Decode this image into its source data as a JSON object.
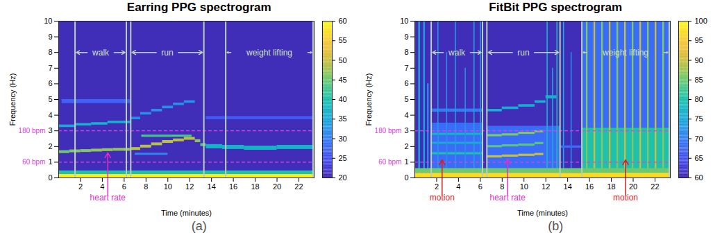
{
  "chart_data": [
    {
      "type": "heatmap",
      "title": "Earring PPG spectrogram",
      "panel_label": "(a)",
      "x_label": "Time (minutes)",
      "y_label": "Frequency (Hz)",
      "xlim": [
        0,
        23.4
      ],
      "xticks": [
        2,
        4,
        6,
        8,
        10,
        12,
        14,
        16,
        18,
        20,
        22
      ],
      "ylim": [
        0,
        10
      ],
      "yticks": [
        0,
        1,
        2,
        3,
        4,
        5,
        6,
        7,
        8,
        9,
        10
      ],
      "colorbar": {
        "range": [
          20,
          60
        ],
        "ticks": [
          20,
          25,
          30,
          35,
          40,
          45,
          50,
          55,
          60
        ]
      },
      "reference_lines": [
        {
          "value": 3,
          "label": "180 bpm",
          "color": "#e040e0"
        },
        {
          "value": 1,
          "label": "60 bpm",
          "color": "#e040e0"
        }
      ],
      "segments": [
        {
          "label": "walk",
          "start": 1.5,
          "end": 6.2
        },
        {
          "label": "run",
          "start": 6.6,
          "end": 13.3
        },
        {
          "label": "weight lifting",
          "start": 15.3,
          "end": 23.3
        }
      ],
      "annotations": [
        {
          "text": "heart rate",
          "target": [
            4.5,
            1.6
          ],
          "color": "#e62ec7"
        }
      ],
      "cells": [
        {
          "t0": 0,
          "t1": 23.4,
          "f0": 0,
          "f1": 10,
          "value": 21
        },
        {
          "t0": 0,
          "t1": 23.4,
          "f0": 0.22,
          "f1": 0.45,
          "value": 40
        },
        {
          "t0": 0,
          "t1": 23.4,
          "f0": 0,
          "f1": 0.22,
          "value": 59
        },
        {
          "t0": 0,
          "t1": 1,
          "f0": 1.56,
          "f1": 1.74,
          "value": 45
        },
        {
          "t0": 1,
          "t1": 2,
          "f0": 1.61,
          "f1": 1.79,
          "value": 46
        },
        {
          "t0": 2,
          "t1": 3,
          "f0": 1.63,
          "f1": 1.81,
          "value": 46
        },
        {
          "t0": 3,
          "t1": 4,
          "f0": 1.66,
          "f1": 1.84,
          "value": 47
        },
        {
          "t0": 4,
          "t1": 5,
          "f0": 1.69,
          "f1": 1.87,
          "value": 47
        },
        {
          "t0": 5,
          "t1": 6.6,
          "f0": 1.71,
          "f1": 1.89,
          "value": 47
        },
        {
          "t0": 0,
          "t1": 1.5,
          "f0": 3.22,
          "f1": 3.38,
          "value": 35
        },
        {
          "t0": 1.5,
          "t1": 3,
          "f0": 3.32,
          "f1": 3.48,
          "value": 36
        },
        {
          "t0": 3,
          "t1": 4.5,
          "f0": 3.37,
          "f1": 3.53,
          "value": 36
        },
        {
          "t0": 4.5,
          "t1": 6.6,
          "f0": 3.47,
          "f1": 3.63,
          "value": 36
        },
        {
          "t0": 0.3,
          "t1": 6.6,
          "f0": 4.75,
          "f1": 5.0,
          "value": 27
        },
        {
          "t0": 7,
          "t1": 10,
          "f0": 1.45,
          "f1": 1.58,
          "value": 31
        },
        {
          "t0": 7.6,
          "t1": 12.2,
          "f0": 2.6,
          "f1": 2.74,
          "value": 43
        },
        {
          "t0": 6.6,
          "t1": 7.5,
          "f0": 1.76,
          "f1": 1.94,
          "value": 49
        },
        {
          "t0": 7.5,
          "t1": 8.5,
          "f0": 1.91,
          "f1": 2.09,
          "value": 49
        },
        {
          "t0": 8.5,
          "t1": 9.5,
          "f0": 2.06,
          "f1": 2.24,
          "value": 49
        },
        {
          "t0": 9.5,
          "t1": 10.5,
          "f0": 2.21,
          "f1": 2.39,
          "value": 49
        },
        {
          "t0": 10.5,
          "t1": 11.5,
          "f0": 2.31,
          "f1": 2.49,
          "value": 49
        },
        {
          "t0": 11.5,
          "t1": 12.5,
          "f0": 2.41,
          "f1": 2.59,
          "value": 49
        },
        {
          "t0": 12.5,
          "t1": 13,
          "f0": 2.26,
          "f1": 2.44,
          "value": 47
        },
        {
          "t0": 13,
          "t1": 13.5,
          "f0": 2.01,
          "f1": 2.19,
          "value": 44
        },
        {
          "t0": 6.6,
          "t1": 7.5,
          "f0": 3.72,
          "f1": 3.88,
          "value": 32
        },
        {
          "t0": 7.5,
          "t1": 8.5,
          "f0": 4.02,
          "f1": 4.18,
          "value": 32
        },
        {
          "t0": 8.5,
          "t1": 9.5,
          "f0": 4.22,
          "f1": 4.38,
          "value": 32
        },
        {
          "t0": 9.5,
          "t1": 10.5,
          "f0": 4.42,
          "f1": 4.58,
          "value": 32
        },
        {
          "t0": 10.5,
          "t1": 11.5,
          "f0": 4.62,
          "f1": 4.78,
          "value": 32
        },
        {
          "t0": 11.5,
          "t1": 12.5,
          "f0": 4.77,
          "f1": 4.93,
          "value": 32
        },
        {
          "t0": 13.5,
          "t1": 15,
          "f0": 1.87,
          "f1": 2.13,
          "value": 37
        },
        {
          "t0": 15,
          "t1": 17,
          "f0": 1.82,
          "f1": 2.08,
          "value": 37
        },
        {
          "t0": 17,
          "t1": 20,
          "f0": 1.77,
          "f1": 2.03,
          "value": 37
        },
        {
          "t0": 20,
          "t1": 23.4,
          "f0": 1.82,
          "f1": 2.08,
          "value": 37
        },
        {
          "t0": 13.5,
          "t1": 23.4,
          "f0": 3.72,
          "f1": 3.92,
          "value": 26
        }
      ]
    },
    {
      "type": "heatmap",
      "title": "FitBit PPG spectrogram",
      "panel_label": "(b)",
      "x_label": "Time (minutes)",
      "y_label": "Frequency (Hz)",
      "xlim": [
        0,
        23.4
      ],
      "xticks": [
        2,
        4,
        6,
        8,
        10,
        12,
        14,
        16,
        18,
        20,
        22
      ],
      "ylim": [
        0,
        10
      ],
      "yticks": [
        0,
        1,
        2,
        3,
        4,
        5,
        6,
        7,
        8,
        9,
        10
      ],
      "colorbar": {
        "range": [
          60,
          100
        ],
        "ticks": [
          60,
          65,
          70,
          75,
          80,
          85,
          90,
          95,
          100
        ]
      },
      "reference_lines": [
        {
          "value": 3,
          "label": "180 bpm",
          "color": "#e040e0"
        },
        {
          "value": 1,
          "label": "60 bpm",
          "color": "#e040e0"
        }
      ],
      "segments": [
        {
          "label": "walk",
          "start": 1.5,
          "end": 6.2
        },
        {
          "label": "run",
          "start": 6.6,
          "end": 13.3
        },
        {
          "label": "weight lifting",
          "start": 15.3,
          "end": 23.3
        }
      ],
      "annotations": [
        {
          "text": "motion",
          "target": [
            2.5,
            1.15
          ],
          "color": "#d41f1f"
        },
        {
          "text": "heart rate",
          "target": [
            8.5,
            1.2
          ],
          "color": "#e62ec7"
        },
        {
          "text": "motion",
          "target": [
            19.3,
            1.15
          ],
          "color": "#d41f1f"
        }
      ],
      "cells": [
        {
          "t0": 0,
          "t1": 23.4,
          "f0": 0,
          "f1": 10,
          "value": 61
        },
        {
          "t0": 1.5,
          "t1": 6.2,
          "f0": 0,
          "f1": 3.5,
          "value": 68
        },
        {
          "t0": 6.6,
          "t1": 13.3,
          "f0": 0,
          "f1": 3.3,
          "value": 68
        },
        {
          "t0": 15.3,
          "t1": 23.4,
          "f0": 0,
          "f1": 3.2,
          "value": 80
        },
        {
          "t0": 15.3,
          "t1": 23.4,
          "f0": 3.2,
          "f1": 10,
          "value": 68
        },
        {
          "t0": 0.35,
          "t1": 0.5,
          "f0": 0,
          "f1": 10,
          "value": 76
        },
        {
          "t0": 0.8,
          "t1": 0.95,
          "f0": 0,
          "f1": 10,
          "value": 74
        },
        {
          "t0": 1.15,
          "t1": 1.3,
          "f0": 0,
          "f1": 6,
          "value": 72
        },
        {
          "t0": 1.5,
          "t1": 6.2,
          "f0": 1.48,
          "f1": 1.62,
          "value": 80
        },
        {
          "t0": 1.5,
          "t1": 6.2,
          "f0": 2.15,
          "f1": 2.28,
          "value": 76
        },
        {
          "t0": 1.5,
          "t1": 6.2,
          "f0": 2.72,
          "f1": 2.85,
          "value": 78
        },
        {
          "t0": 1.5,
          "t1": 6.2,
          "f0": 4.2,
          "f1": 4.4,
          "value": 70
        },
        {
          "t0": 2.1,
          "t1": 2.2,
          "f0": 0,
          "f1": 10,
          "value": 73
        },
        {
          "t0": 2.9,
          "t1": 3.0,
          "f0": 0,
          "f1": 8,
          "value": 72
        },
        {
          "t0": 3.7,
          "t1": 3.8,
          "f0": 0,
          "f1": 10,
          "value": 73
        },
        {
          "t0": 4.6,
          "t1": 4.7,
          "f0": 0,
          "f1": 7,
          "value": 72
        },
        {
          "t0": 5.4,
          "t1": 5.5,
          "f0": 0,
          "f1": 10,
          "value": 74
        },
        {
          "t0": 6.0,
          "t1": 6.1,
          "f0": 0,
          "f1": 10,
          "value": 73
        },
        {
          "t0": 6.6,
          "t1": 8,
          "f0": 1.28,
          "f1": 1.42,
          "value": 90
        },
        {
          "t0": 8,
          "t1": 9.5,
          "f0": 1.33,
          "f1": 1.47,
          "value": 90
        },
        {
          "t0": 9.5,
          "t1": 11,
          "f0": 1.38,
          "f1": 1.52,
          "value": 90
        },
        {
          "t0": 11,
          "t1": 11.8,
          "f0": 1.43,
          "f1": 1.57,
          "value": 90
        },
        {
          "t0": 6.6,
          "t1": 8,
          "f0": 1.93,
          "f1": 2.07,
          "value": 84
        },
        {
          "t0": 8,
          "t1": 9.5,
          "f0": 1.98,
          "f1": 2.12,
          "value": 84
        },
        {
          "t0": 9.5,
          "t1": 11,
          "f0": 2.03,
          "f1": 2.17,
          "value": 84
        },
        {
          "t0": 11,
          "t1": 11.8,
          "f0": 2.13,
          "f1": 2.27,
          "value": 84
        },
        {
          "t0": 6.6,
          "t1": 8,
          "f0": 2.63,
          "f1": 2.77,
          "value": 86
        },
        {
          "t0": 8,
          "t1": 9.5,
          "f0": 2.68,
          "f1": 2.82,
          "value": 86
        },
        {
          "t0": 9.5,
          "t1": 11,
          "f0": 2.78,
          "f1": 2.92,
          "value": 86
        },
        {
          "t0": 11,
          "t1": 11.8,
          "f0": 2.88,
          "f1": 3.02,
          "value": 86
        },
        {
          "t0": 6.6,
          "t1": 8,
          "f0": 4.22,
          "f1": 4.38,
          "value": 76
        },
        {
          "t0": 8,
          "t1": 9.5,
          "f0": 4.37,
          "f1": 4.53,
          "value": 76
        },
        {
          "t0": 9.5,
          "t1": 11,
          "f0": 4.52,
          "f1": 4.68,
          "value": 76
        },
        {
          "t0": 11,
          "t1": 12,
          "f0": 4.77,
          "f1": 4.93,
          "value": 76
        },
        {
          "t0": 12,
          "t1": 13,
          "f0": 5.05,
          "f1": 5.25,
          "value": 76
        },
        {
          "t0": 12.1,
          "t1": 12.2,
          "f0": 0,
          "f1": 10,
          "value": 78
        },
        {
          "t0": 12.6,
          "t1": 12.7,
          "f0": 0,
          "f1": 7,
          "value": 76
        },
        {
          "t0": 13.0,
          "t1": 13.1,
          "f0": 0,
          "f1": 10,
          "value": 80
        },
        {
          "t0": 13.6,
          "t1": 13.7,
          "f0": 0,
          "f1": 10,
          "value": 76
        },
        {
          "t0": 14.3,
          "t1": 14.4,
          "f0": 0,
          "f1": 8,
          "value": 72
        },
        {
          "t0": 13.3,
          "t1": 15.3,
          "f0": 1.9,
          "f1": 2.05,
          "value": 68
        },
        {
          "t0": 15.7,
          "t1": 15.85,
          "f0": 0,
          "f1": 10,
          "value": 86
        },
        {
          "t0": 16.4,
          "t1": 16.55,
          "f0": 0,
          "f1": 10,
          "value": 90
        },
        {
          "t0": 17.1,
          "t1": 17.25,
          "f0": 0,
          "f1": 10,
          "value": 86
        },
        {
          "t0": 17.8,
          "t1": 17.95,
          "f0": 0,
          "f1": 10,
          "value": 90
        },
        {
          "t0": 18.5,
          "t1": 18.65,
          "f0": 0,
          "f1": 10,
          "value": 86
        },
        {
          "t0": 19.2,
          "t1": 19.35,
          "f0": 0,
          "f1": 10,
          "value": 90
        },
        {
          "t0": 19.9,
          "t1": 20.05,
          "f0": 0,
          "f1": 10,
          "value": 86
        },
        {
          "t0": 20.6,
          "t1": 20.75,
          "f0": 0,
          "f1": 10,
          "value": 90
        },
        {
          "t0": 21.3,
          "t1": 21.45,
          "f0": 0,
          "f1": 10,
          "value": 86
        },
        {
          "t0": 22.0,
          "t1": 22.15,
          "f0": 0,
          "f1": 10,
          "value": 90
        },
        {
          "t0": 22.7,
          "t1": 22.85,
          "f0": 0,
          "f1": 10,
          "value": 86
        },
        {
          "t0": 0,
          "t1": 23.4,
          "f0": 0.3,
          "f1": 0.6,
          "value": 85
        },
        {
          "t0": 0,
          "t1": 23.4,
          "f0": 0,
          "f1": 0.3,
          "value": 97
        }
      ]
    }
  ]
}
